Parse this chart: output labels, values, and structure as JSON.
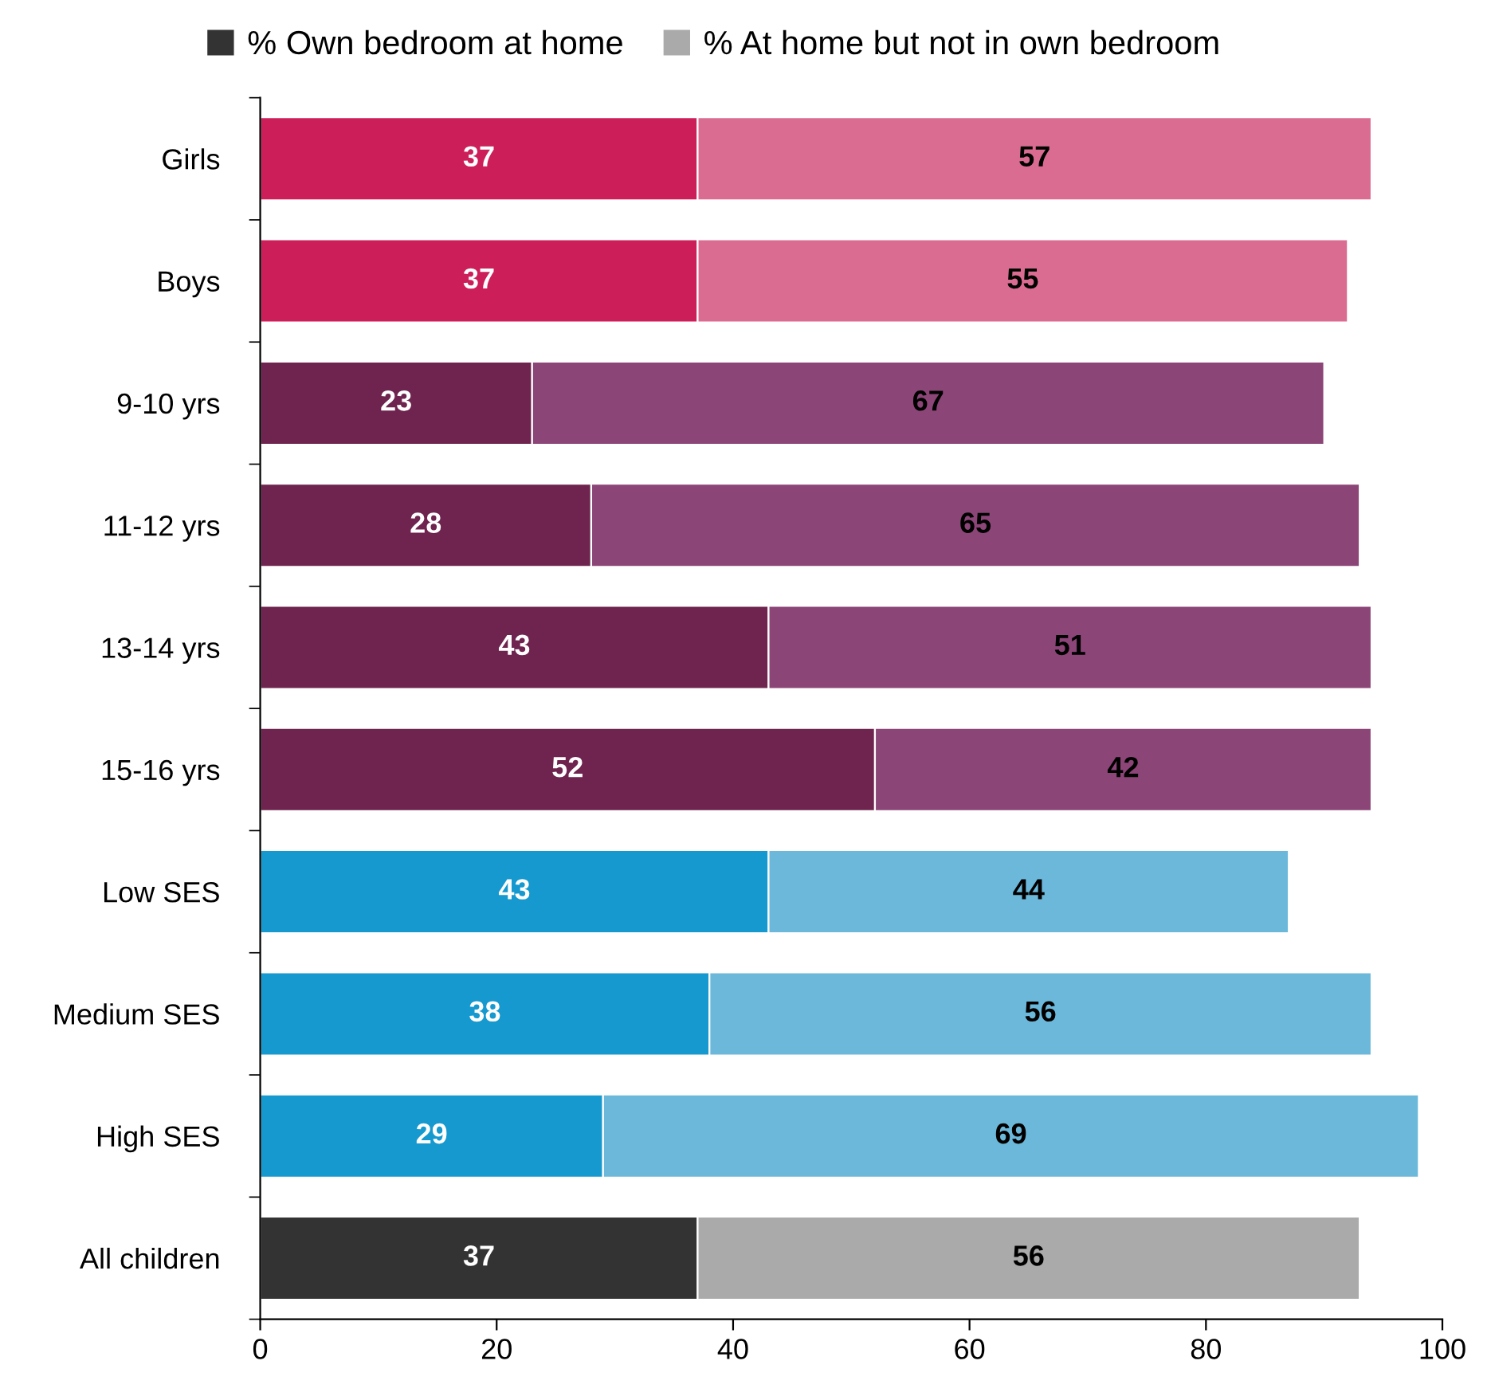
{
  "chart_data": {
    "type": "bar",
    "orientation": "horizontal",
    "stacked": true,
    "categories": [
      "Girls",
      "Boys",
      "9-10 yrs",
      "11-12 yrs",
      "13-14 yrs",
      "15-16 yrs",
      "Low SES",
      "Medium SES",
      "High SES",
      "All children"
    ],
    "series": [
      {
        "name": "% Own bedroom at home",
        "color": "#333333",
        "colors": [
          "#cc1f5a",
          "#cc1f5a",
          "#6e244e",
          "#6e244e",
          "#6e244e",
          "#6e244e",
          "#1699cf",
          "#1699cf",
          "#1699cf",
          "#333333"
        ],
        "values": [
          37,
          37,
          23,
          28,
          43,
          52,
          43,
          38,
          29,
          37
        ]
      },
      {
        "name": "% At home but not in own bedroom",
        "color": "#aaaaaa",
        "colors": [
          "#db6c91",
          "#db6c91",
          "#8b4577",
          "#8b4577",
          "#8b4577",
          "#8b4577",
          "#6bb8da",
          "#6bb8da",
          "#6bb8da",
          "#aaaaaa"
        ],
        "values": [
          57,
          55,
          67,
          65,
          51,
          42,
          44,
          56,
          69,
          56
        ]
      }
    ],
    "xlim": [
      0,
      100
    ],
    "xticks": [
      0,
      20,
      40,
      60,
      80,
      100
    ],
    "grid": false,
    "legend": "top",
    "data_labels": true
  }
}
